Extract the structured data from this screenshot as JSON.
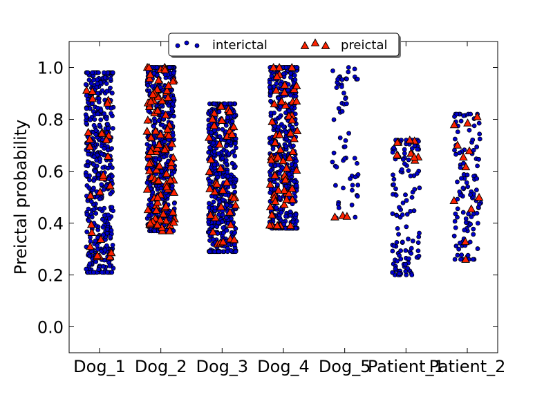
{
  "chart_data": {
    "type": "scatter",
    "title": "",
    "xlabel": "",
    "ylabel": "Preictal probability",
    "categories": [
      "Dog_1",
      "Dog_2",
      "Dog_3",
      "Dog_4",
      "Dog_5",
      "Patient_1",
      "Patient_2"
    ],
    "ylim": [
      -0.1,
      1.1
    ],
    "yticks": [
      "0.0",
      "0.2",
      "0.4",
      "0.6",
      "0.8",
      "1.0"
    ],
    "legend": {
      "placement": "top-center"
    },
    "series": [
      {
        "name": "interictal",
        "marker": "circle",
        "color": "#0000cc",
        "groups": [
          {
            "category": "Dog_1",
            "min": 0.21,
            "max": 0.98,
            "count": 450
          },
          {
            "category": "Dog_2",
            "min": 0.37,
            "max": 1.0,
            "count": 480
          },
          {
            "category": "Dog_3",
            "min": 0.29,
            "max": 0.86,
            "count": 450
          },
          {
            "category": "Dog_4",
            "min": 0.38,
            "max": 1.0,
            "count": 450
          },
          {
            "category": "Dog_5",
            "min": 0.42,
            "max": 1.0,
            "count": 60
          },
          {
            "category": "Patient_1",
            "min": 0.2,
            "max": 0.72,
            "count": 120
          },
          {
            "category": "Patient_2",
            "min": 0.26,
            "max": 0.82,
            "count": 110
          }
        ]
      },
      {
        "name": "preictal",
        "marker": "triangle",
        "color": "#ff2200",
        "groups": [
          {
            "category": "Dog_1",
            "min": 0.27,
            "max": 0.98,
            "count": 28
          },
          {
            "category": "Dog_2",
            "min": 0.37,
            "max": 1.0,
            "count": 90
          },
          {
            "category": "Dog_3",
            "min": 0.31,
            "max": 0.85,
            "count": 40
          },
          {
            "category": "Dog_4",
            "min": 0.39,
            "max": 1.0,
            "count": 60
          },
          {
            "category": "Dog_5",
            "min": 0.42,
            "max": 0.43,
            "count": 3
          },
          {
            "category": "Patient_1",
            "min": 0.62,
            "max": 0.72,
            "count": 10
          },
          {
            "category": "Patient_2",
            "min": 0.26,
            "max": 0.81,
            "count": 12
          }
        ]
      }
    ]
  }
}
